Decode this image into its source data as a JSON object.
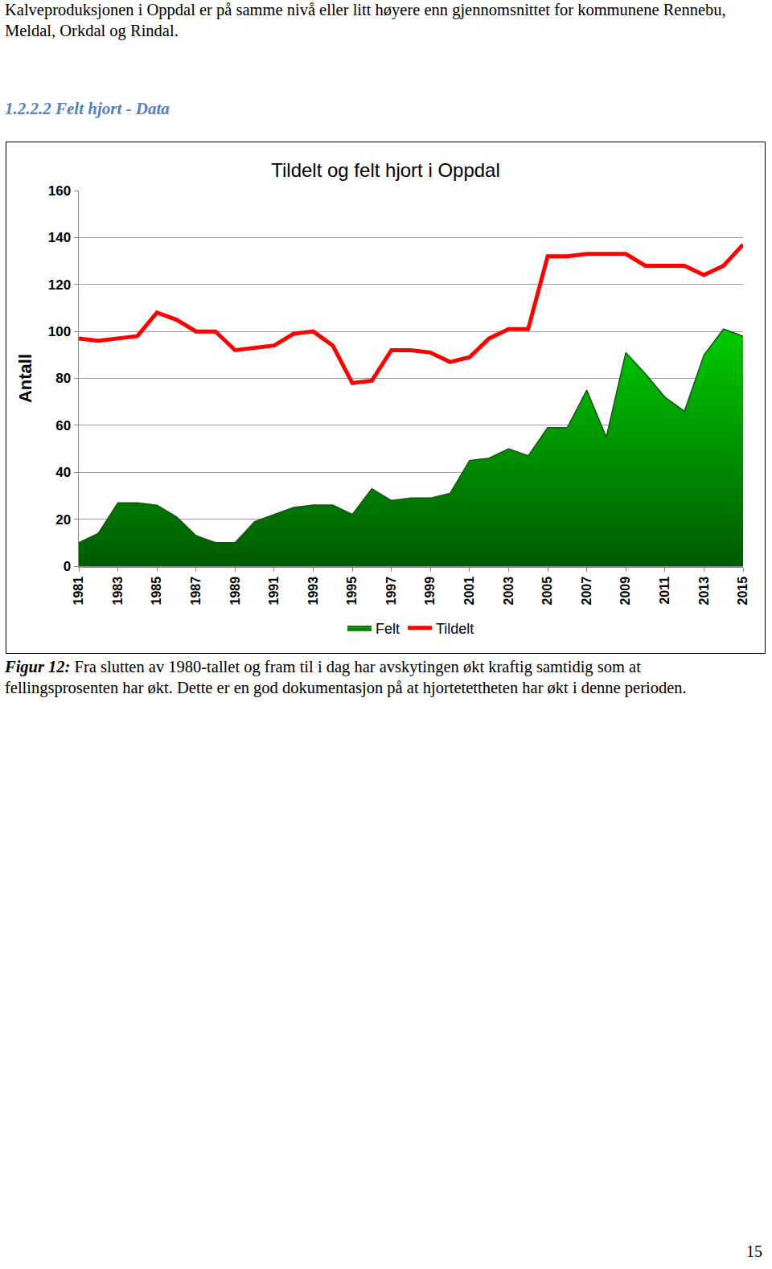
{
  "intro": "Kalveproduksjonen i Oppdal er på samme nivå eller litt høyere enn gjennomsnittet for kommunene Rennebu, Meldal, Orkdal og Rindal.",
  "heading": "1.2.2.2 Felt hjort - Data",
  "chart_data": {
    "type": "line",
    "title": "Tildelt og felt hjort i Oppdal",
    "y_label": "Antall",
    "x": [
      1981,
      1982,
      1983,
      1984,
      1985,
      1986,
      1987,
      1988,
      1989,
      1990,
      1991,
      1992,
      1993,
      1994,
      1995,
      1996,
      1997,
      1998,
      1999,
      2000,
      2001,
      2002,
      2003,
      2004,
      2005,
      2006,
      2007,
      2008,
      2009,
      2010,
      2011,
      2012,
      2013,
      2014,
      2015
    ],
    "series": [
      {
        "name": "Felt",
        "type": "area",
        "color": "#00cc00",
        "values": [
          10,
          14,
          27,
          27,
          26,
          21,
          13,
          10,
          10,
          19,
          22,
          25,
          26,
          26,
          22,
          33,
          28,
          29,
          29,
          31,
          45,
          46,
          50,
          47,
          59,
          59,
          75,
          55,
          91,
          82,
          72,
          66,
          90,
          101,
          98
        ]
      },
      {
        "name": "Tildelt",
        "type": "line",
        "color": "#ff0000",
        "values": [
          97,
          96,
          97,
          98,
          108,
          105,
          100,
          100,
          92,
          93,
          94,
          99,
          100,
          94,
          78,
          79,
          92,
          92,
          91,
          87,
          89,
          97,
          101,
          101,
          132,
          132,
          133,
          133,
          133,
          128,
          128,
          128,
          124,
          128,
          137
        ]
      }
    ],
    "xlim": [
      1981,
      2015
    ],
    "xticks": [
      1981,
      1983,
      1985,
      1987,
      1989,
      1991,
      1993,
      1995,
      1997,
      1999,
      2001,
      2003,
      2005,
      2007,
      2009,
      2011,
      2013,
      2015
    ],
    "ylim": [
      0,
      160
    ],
    "yticks": [
      0,
      20,
      40,
      60,
      80,
      100,
      120,
      140,
      160
    ],
    "grid": true,
    "legend": "bottom"
  },
  "caption": {
    "label": "Figur 12:",
    "text": "Fra slutten av 1980-tallet og fram til i dag har avskytingen økt kraftig samtidig som at fellingsprosenten har økt. Dette er en god dokumentasjon på at hjortetettheten har økt i denne perioden."
  },
  "page_number": "15"
}
